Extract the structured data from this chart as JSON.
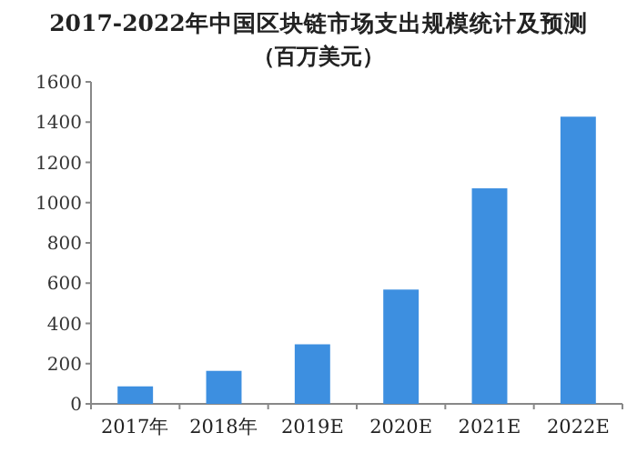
{
  "chart_data": {
    "type": "bar",
    "title": "2017-2022年中国区块链市场支出规模统计及预测",
    "subtitle": "（百万美元）",
    "categories": [
      "2017年",
      "2018年",
      "2019E",
      "2020E",
      "2021E",
      "2022E"
    ],
    "values": [
      87,
      164,
      296,
      568,
      1071,
      1427
    ],
    "color": "#3d8fe0",
    "ylim": [
      0,
      1600
    ],
    "yticks": [
      0,
      200,
      400,
      600,
      800,
      1000,
      1200,
      1400,
      1600
    ],
    "grid": false
  }
}
